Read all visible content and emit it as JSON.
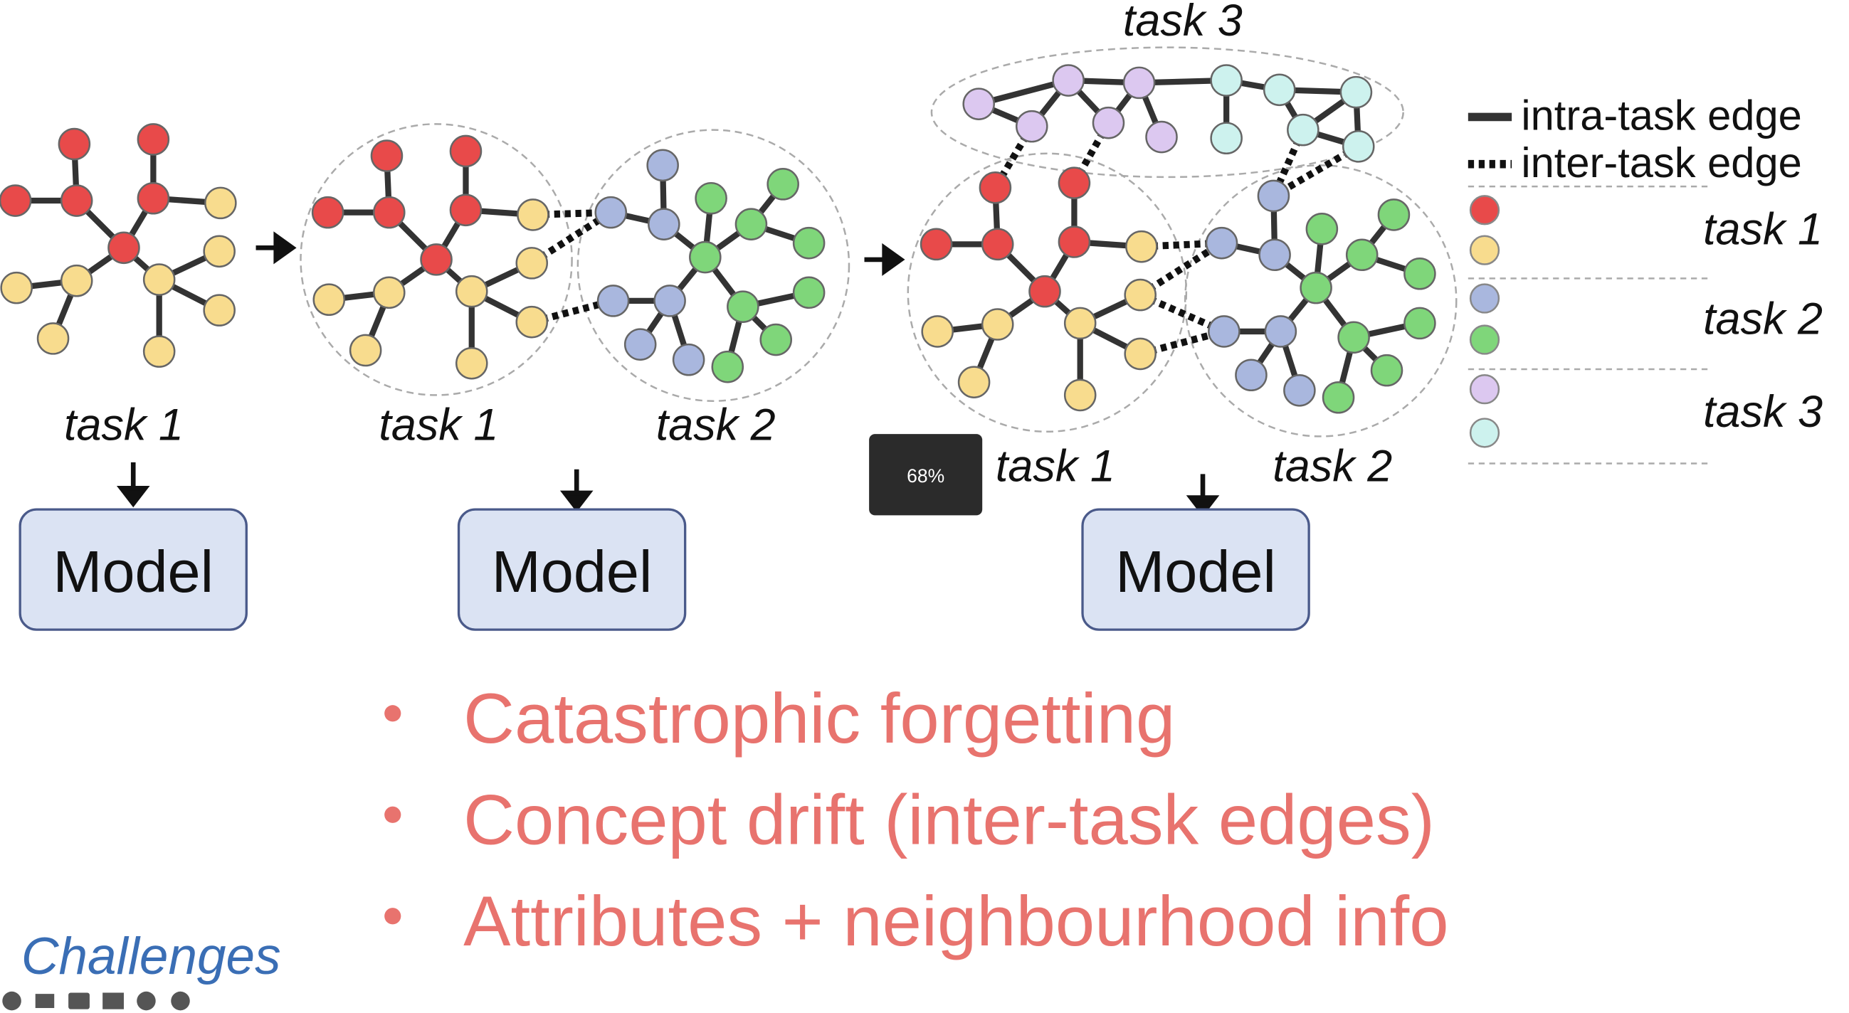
{
  "slide": {
    "top_label": "task 3",
    "panels": [
      {
        "task_labels": [
          "task 1"
        ],
        "model": "Model"
      },
      {
        "task_labels": [
          "task 1",
          "task 2"
        ],
        "model": "Model"
      },
      {
        "task_labels": [
          "task 1",
          "task 2"
        ],
        "model": "Model"
      }
    ],
    "legend": {
      "edges": [
        "intra-task edge",
        "inter-task edge"
      ],
      "classes": [
        "class 1",
        "class 2",
        "class 3",
        "class 4",
        "class 5",
        "class 6"
      ],
      "tasks": [
        "task 1",
        "task 2",
        "task 3"
      ]
    },
    "bullets": [
      "Catastrophic forgetting",
      "Concept drift (inter-task edges)",
      "Attributes + neighbourhood info"
    ],
    "footer_title": "Challenges"
  },
  "overlay": {
    "zoom": "68%"
  }
}
